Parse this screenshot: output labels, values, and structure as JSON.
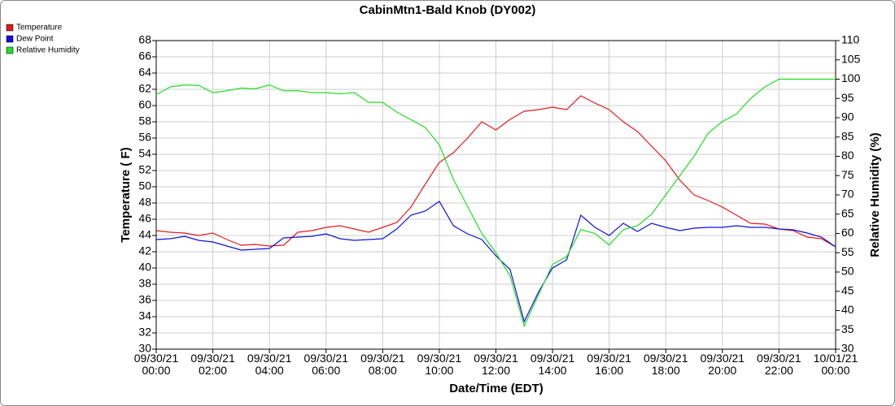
{
  "chart_data": {
    "type": "line",
    "title": "CabinMtn1-Bald Knob (DY002)",
    "x_label": "Date/Time (EDT)",
    "y_label": "Temperature ( F)",
    "y2_label": "Relative Humidity (%)",
    "grid": true,
    "legend": "top-left",
    "x": [
      "09/30/21 00:00",
      "09/30/21 00:30",
      "09/30/21 01:00",
      "09/30/21 01:30",
      "09/30/21 02:00",
      "09/30/21 02:30",
      "09/30/21 03:00",
      "09/30/21 03:30",
      "09/30/21 04:00",
      "09/30/21 04:30",
      "09/30/21 05:00",
      "09/30/21 05:30",
      "09/30/21 06:00",
      "09/30/21 06:30",
      "09/30/21 07:00",
      "09/30/21 07:30",
      "09/30/21 08:00",
      "09/30/21 08:30",
      "09/30/21 09:00",
      "09/30/21 09:30",
      "09/30/21 10:00",
      "09/30/21 10:30",
      "09/30/21 11:00",
      "09/30/21 11:30",
      "09/30/21 12:00",
      "09/30/21 12:30",
      "09/30/21 13:00",
      "09/30/21 13:30",
      "09/30/21 14:00",
      "09/30/21 14:30",
      "09/30/21 15:00",
      "09/30/21 15:30",
      "09/30/21 16:00",
      "09/30/21 16:30",
      "09/30/21 17:00",
      "09/30/21 17:30",
      "09/30/21 18:00",
      "09/30/21 18:30",
      "09/30/21 19:00",
      "09/30/21 19:30",
      "09/30/21 20:00",
      "09/30/21 20:30",
      "09/30/21 21:00",
      "09/30/21 21:30",
      "09/30/21 22:00",
      "09/30/21 22:30",
      "09/30/21 23:00",
      "09/30/21 23:30",
      "10/01/21 00:00"
    ],
    "series": [
      {
        "name": "Temperature",
        "color": "#e31a1c",
        "values": [
          44.6,
          44.4,
          44.3,
          44.0,
          44.3,
          43.5,
          42.8,
          42.9,
          42.7,
          42.8,
          44.4,
          44.6,
          45.0,
          45.2,
          44.8,
          44.4,
          45.0,
          45.6,
          47.5,
          50.3,
          53.0,
          54.2,
          56.0,
          58.0,
          57.0,
          58.3,
          59.3,
          59.5,
          59.8,
          59.5,
          61.2,
          60.3,
          59.5,
          58.0,
          56.8,
          55.0,
          53.2,
          50.8,
          49.0,
          48.3,
          47.5,
          46.5,
          45.5,
          45.4,
          44.8,
          44.6,
          43.8,
          43.6,
          42.6
        ]
      },
      {
        "name": "Dew Point",
        "color": "#1010d8",
        "values": [
          43.5,
          43.6,
          43.9,
          43.4,
          43.2,
          42.7,
          42.2,
          42.3,
          42.4,
          43.7,
          43.8,
          43.9,
          44.2,
          43.6,
          43.4,
          43.5,
          43.6,
          44.8,
          46.5,
          47.0,
          48.2,
          45.2,
          44.2,
          43.5,
          41.5,
          39.8,
          33.4,
          37.0,
          40.0,
          41.0,
          46.5,
          45.0,
          44.0,
          45.5,
          44.5,
          45.5,
          45.0,
          44.6,
          44.9,
          45.0,
          45.0,
          45.2,
          45.0,
          45.0,
          44.8,
          44.7,
          44.3,
          43.8,
          42.6
        ]
      },
      {
        "name": "Relative Humidity",
        "color": "#22dd22",
        "axis": "y2",
        "values": [
          96,
          98,
          98.5,
          98.4,
          96.5,
          97,
          97.7,
          97.5,
          98.5,
          97,
          97,
          96.5,
          96.5,
          96.2,
          96.5,
          94,
          94,
          91.5,
          89.5,
          87.5,
          83,
          74,
          67,
          60,
          55,
          49,
          36,
          44,
          52,
          54,
          61,
          60,
          57,
          61,
          62,
          65,
          70,
          75,
          80,
          86,
          89,
          91,
          95,
          98,
          100,
          100,
          100,
          100,
          100
        ]
      }
    ],
    "xticks": [
      "09/30/21 00:00",
      "09/30/21 02:00",
      "09/30/21 04:00",
      "09/30/21 06:00",
      "09/30/21 08:00",
      "09/30/21 10:00",
      "09/30/21 12:00",
      "09/30/21 14:00",
      "09/30/21 16:00",
      "09/30/21 18:00",
      "09/30/21 20:00",
      "09/30/21 22:00",
      "10/01/21 00:00"
    ],
    "ylim": [
      30,
      68
    ],
    "yticks": [
      30,
      32,
      34,
      36,
      38,
      40,
      42,
      44,
      46,
      48,
      50,
      52,
      54,
      56,
      58,
      60,
      62,
      64,
      66,
      68
    ],
    "y2lim": [
      30,
      110
    ],
    "y2ticks": [
      30,
      35,
      40,
      45,
      50,
      55,
      60,
      65,
      70,
      75,
      80,
      85,
      90,
      95,
      100,
      105,
      110
    ]
  }
}
